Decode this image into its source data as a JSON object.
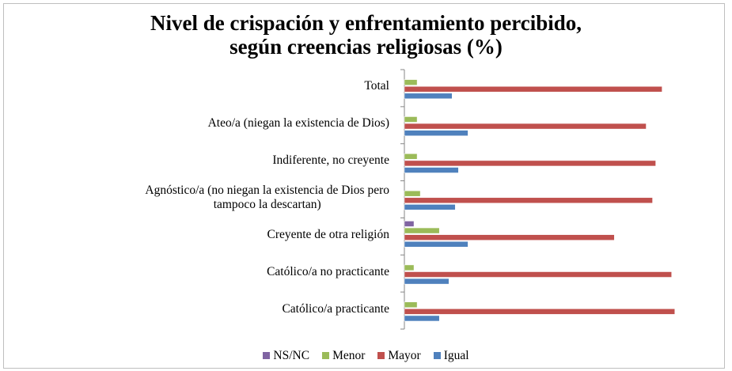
{
  "chart_data": {
    "type": "bar",
    "orientation": "horizontal",
    "title": "Nivel de crispación y enfrentamiento percibido,\nsegún creencias religiosas (%)",
    "categories": [
      "Total",
      "Ateo/a (niegan la existencia de Dios)",
      "Indiferente, no creyente",
      "Agnóstico/a (no niegan la existencia de Dios pero\ntampoco la descartan)",
      "Creyente de otra religión",
      "Católico/a no practicante",
      "Católico/a practicante"
    ],
    "series": [
      {
        "name": "NS/NC",
        "color": "#8064a2",
        "values": [
          0,
          0,
          0,
          0,
          3,
          0,
          0
        ]
      },
      {
        "name": "Menor",
        "color": "#9bbb59",
        "values": [
          4,
          4,
          4,
          5,
          11,
          3,
          4
        ]
      },
      {
        "name": "Mayor",
        "color": "#c0504d",
        "values": [
          81,
          76,
          79,
          78,
          66,
          84,
          85
        ]
      },
      {
        "name": "Igual",
        "color": "#4f81bd",
        "values": [
          15,
          20,
          17,
          16,
          20,
          14,
          11
        ]
      }
    ],
    "xlim": [
      0,
      100
    ]
  }
}
